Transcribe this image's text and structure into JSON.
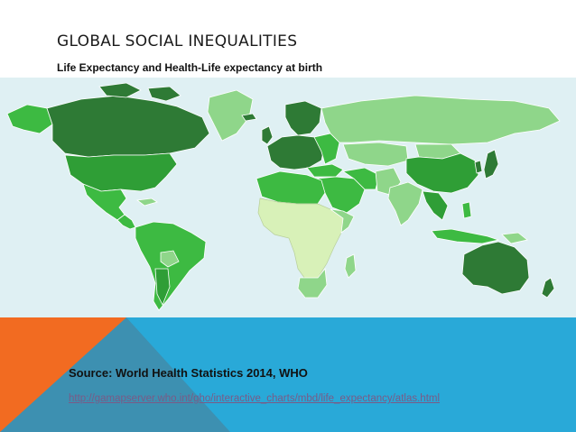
{
  "slide": {
    "title": "GLOBAL SOCIAL INEQUALITIES",
    "subtitle": "Life Expectancy and Health-Life expectancy at birth",
    "source": "Source: World Health Statistics 2014, WHO",
    "link": "http://gamapserver.who.int/gho/interactive_charts/mbd/life_expectancy/atlas.html"
  },
  "map": {
    "ocean_color": "#dff0f3",
    "color_scale": {
      "highest": "#2e7a35",
      "high": "#2f9e36",
      "medium": "#3dba42",
      "low": "#8fd68a",
      "lowest": "#d8f1b8"
    }
  },
  "theme": {
    "orange": "#f26b21",
    "blue": "#29a9d8",
    "slate": "#3d90b1"
  }
}
